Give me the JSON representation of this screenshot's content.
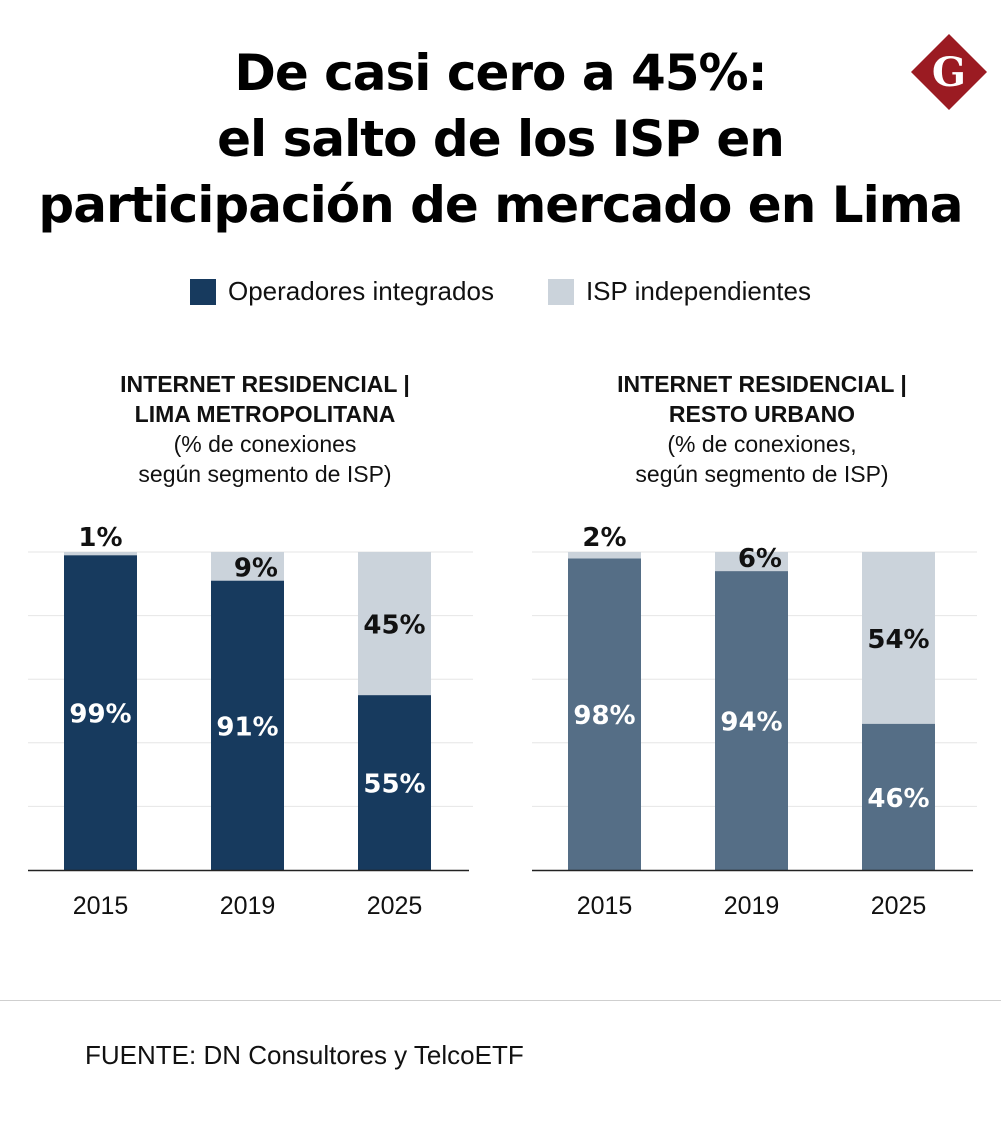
{
  "title": {
    "lines": [
      "De casi cero a 45%:",
      "el salto de los ISP en",
      "participación de mercado en Lima"
    ]
  },
  "logo": {
    "letter": "G",
    "color": "#9b1b22"
  },
  "legend": {
    "items": [
      {
        "label": "Operadores integrados",
        "color": "#173a5e"
      },
      {
        "label": "ISP independientes",
        "color": "#cbd3db"
      }
    ]
  },
  "panels": [
    {
      "heading_line1": "INTERNET RESIDENCIAL |",
      "heading_line2": "LIMA METROPOLITANA",
      "sub_line1": "(% de conexiones",
      "sub_line2": "según segmento de ISP)"
    },
    {
      "heading_line1": "INTERNET RESIDENCIAL |",
      "heading_line2": "RESTO URBANO",
      "sub_line1": "(% de conexiones,",
      "sub_line2": "según segmento de ISP)"
    }
  ],
  "chart_data": [
    {
      "type": "bar",
      "stacked": true,
      "title": "INTERNET RESIDENCIAL | LIMA METROPOLITANA (% de conexiones según segmento de ISP)",
      "categories": [
        "2015",
        "2019",
        "2025"
      ],
      "series": [
        {
          "name": "Operadores integrados",
          "values": [
            99,
            91,
            55
          ],
          "labels": [
            "99%",
            "91%",
            "55%"
          ],
          "color": "#173a5e",
          "label_color": "#ffffff"
        },
        {
          "name": "ISP independientes",
          "values": [
            1,
            9,
            45
          ],
          "labels": [
            "1%",
            "9%",
            "45%"
          ],
          "color": "#cbd3db",
          "label_color": "#111111"
        }
      ],
      "ylim": [
        0,
        100
      ],
      "grid": true
    },
    {
      "type": "bar",
      "stacked": true,
      "title": "INTERNET RESIDENCIAL | RESTO URBANO (% de conexiones, según segmento de ISP)",
      "categories": [
        "2015",
        "2019",
        "2025"
      ],
      "series": [
        {
          "name": "Operadores integrados",
          "values": [
            98,
            94,
            46
          ],
          "labels": [
            "98%",
            "94%",
            "46%"
          ],
          "color": "#556e86",
          "label_color": "#ffffff"
        },
        {
          "name": "ISP independientes",
          "values": [
            2,
            6,
            54
          ],
          "labels": [
            "2%",
            "6%",
            "54%"
          ],
          "color": "#cbd3db",
          "label_color": "#111111"
        }
      ],
      "ylim": [
        0,
        100
      ],
      "grid": true
    }
  ],
  "source": "FUENTE: DN Consultores y TelcoETF"
}
